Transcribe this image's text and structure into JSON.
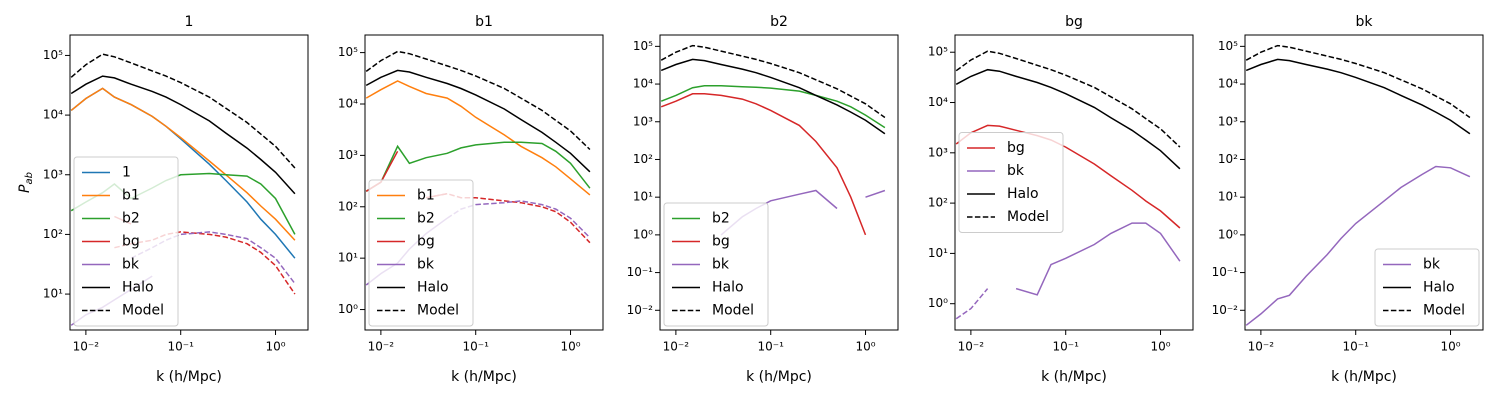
{
  "chart_data": [
    {
      "type": "line",
      "title": "1",
      "xlabel": "k (h/Mpc)",
      "ylabel": {
        "text": "P",
        "sub": "ab"
      },
      "log_x": true,
      "log_y": true,
      "legend_loc": "lower left",
      "x": [
        0.007,
        0.01,
        0.015,
        0.02,
        0.03,
        0.05,
        0.07,
        0.1,
        0.2,
        0.3,
        0.5,
        0.7,
        1.0,
        1.6
      ],
      "xlim": [
        0.0068,
        2.2
      ],
      "xticks": [
        {
          "value": 0.01,
          "label": "10⁻²"
        },
        {
          "value": 0.1,
          "label": "10⁻¹"
        },
        {
          "value": 1,
          "label": "10⁰"
        }
      ],
      "ylim": [
        2.5,
        220000
      ],
      "yticks": [
        {
          "value": 10,
          "label": "10¹"
        },
        {
          "value": 100,
          "label": "10²"
        },
        {
          "value": 1000,
          "label": "10³"
        },
        {
          "value": 10000,
          "label": "10⁴"
        },
        {
          "value": 100000,
          "label": "10⁵"
        }
      ],
      "series": [
        {
          "name": "1",
          "color": "#1f77b4",
          "values": [
            12000,
            19000,
            28000,
            20000,
            15000,
            9500,
            6500,
            4000,
            1500,
            800,
            350,
            180,
            100,
            40
          ]
        },
        {
          "name": "b1",
          "color": "#ff7f0e",
          "values": [
            12000,
            19000,
            28000,
            20000,
            15000,
            9500,
            6500,
            4200,
            1700,
            1000,
            500,
            300,
            180,
            80
          ]
        },
        {
          "name": "b2",
          "color": "#2ca02c",
          "values": [
            250,
            350,
            500,
            700,
            400,
            600,
            800,
            1000,
            1050,
            1000,
            950,
            700,
            400,
            100
          ]
        },
        {
          "name": "bg",
          "color": "#d62728",
          "values": [
            null,
            null,
            null,
            200,
            150,
            null,
            null,
            null,
            null,
            null,
            null,
            null,
            null,
            null
          ]
        },
        {
          "name": "bk",
          "color": "#9467bd",
          "values": [
            3,
            4.5,
            6,
            8,
            12,
            20,
            null,
            null,
            null,
            null,
            null,
            null,
            null,
            null
          ]
        },
        {
          "color": "#d62728",
          "dash": true,
          "values": [
            null,
            null,
            null,
            60,
            70,
            80,
            100,
            110,
            100,
            90,
            70,
            50,
            30,
            10
          ]
        },
        {
          "color": "#9467bd",
          "dash": true,
          "values": [
            null,
            null,
            null,
            null,
            40,
            60,
            80,
            100,
            110,
            100,
            85,
            60,
            40,
            15
          ]
        },
        {
          "name": "Halo",
          "color": "#000000",
          "values": [
            23000,
            33000,
            45000,
            42000,
            33000,
            25000,
            20000,
            15000,
            8000,
            5000,
            2800,
            1800,
            1100,
            480
          ]
        },
        {
          "name": "Model",
          "color": "#000000",
          "dash": true,
          "values": [
            43000,
            70000,
            105000,
            95000,
            75000,
            55000,
            45000,
            35000,
            20000,
            13000,
            7500,
            4800,
            3000,
            1300
          ]
        }
      ]
    },
    {
      "type": "line",
      "title": "b1",
      "xlabel": "k (h/Mpc)",
      "log_x": true,
      "log_y": true,
      "legend_loc": "lower left",
      "x": [
        0.007,
        0.01,
        0.015,
        0.02,
        0.03,
        0.05,
        0.07,
        0.1,
        0.2,
        0.3,
        0.5,
        0.7,
        1.0,
        1.6
      ],
      "xlim": [
        0.0068,
        2.2
      ],
      "xticks": [
        {
          "value": 0.01,
          "label": "10⁻²"
        },
        {
          "value": 0.1,
          "label": "10⁻¹"
        },
        {
          "value": 1,
          "label": "10⁰"
        }
      ],
      "ylim": [
        0.4,
        220000
      ],
      "yticks": [
        {
          "value": 1,
          "label": "10⁰"
        },
        {
          "value": 10,
          "label": "10¹"
        },
        {
          "value": 100,
          "label": "10²"
        },
        {
          "value": 1000,
          "label": "10³"
        },
        {
          "value": 10000,
          "label": "10⁴"
        },
        {
          "value": 100000,
          "label": "10⁵"
        }
      ],
      "series": [
        {
          "name": "b1",
          "color": "#ff7f0e",
          "values": [
            13000,
            19000,
            28000,
            22000,
            16000,
            13000,
            9000,
            5500,
            2500,
            1500,
            900,
            600,
            350,
            170
          ]
        },
        {
          "name": "b2",
          "color": "#2ca02c",
          "values": [
            200,
            300,
            1500,
            700,
            900,
            1100,
            1400,
            1600,
            1800,
            1800,
            1700,
            1200,
            700,
            230
          ]
        },
        {
          "name": "bg",
          "color": "#d62728",
          "values": [
            200,
            300,
            1200,
            null,
            150,
            180,
            null,
            null,
            null,
            null,
            null,
            null,
            null,
            null
          ]
        },
        {
          "name": "bk",
          "color": "#9467bd",
          "values": [
            3,
            5,
            8,
            15,
            30,
            60,
            null,
            null,
            null,
            null,
            null,
            null,
            null,
            null
          ]
        },
        {
          "color": "#d62728",
          "dash": true,
          "values": [
            null,
            null,
            null,
            null,
            150,
            180,
            150,
            150,
            130,
            120,
            100,
            80,
            50,
            20
          ]
        },
        {
          "color": "#9467bd",
          "dash": true,
          "values": [
            null,
            null,
            null,
            null,
            null,
            60,
            90,
            110,
            120,
            130,
            110,
            90,
            60,
            25
          ]
        },
        {
          "name": "Halo",
          "color": "#000000",
          "values": [
            23000,
            33000,
            45000,
            42000,
            33000,
            25000,
            20000,
            15000,
            8000,
            5000,
            2800,
            1800,
            1100,
            480
          ]
        },
        {
          "name": "Model",
          "color": "#000000",
          "dash": true,
          "values": [
            43000,
            70000,
            105000,
            95000,
            75000,
            55000,
            45000,
            35000,
            20000,
            13000,
            7500,
            4800,
            3000,
            1300
          ]
        }
      ]
    },
    {
      "type": "line",
      "title": "b2",
      "xlabel": "k (h/Mpc)",
      "log_x": true,
      "log_y": true,
      "legend_loc": "lower left",
      "x": [
        0.007,
        0.01,
        0.015,
        0.02,
        0.03,
        0.05,
        0.07,
        0.1,
        0.2,
        0.3,
        0.5,
        0.7,
        1.0,
        1.6
      ],
      "xlim": [
        0.0068,
        2.2
      ],
      "xticks": [
        {
          "value": 0.01,
          "label": "10⁻²"
        },
        {
          "value": 0.1,
          "label": "10⁻¹"
        },
        {
          "value": 1,
          "label": "10⁰"
        }
      ],
      "ylim": [
        0.003,
        200000
      ],
      "yticks": [
        {
          "value": 0.01,
          "label": "10⁻²"
        },
        {
          "value": 0.1,
          "label": "10⁻¹"
        },
        {
          "value": 1,
          "label": "10⁰"
        },
        {
          "value": 10,
          "label": "10¹"
        },
        {
          "value": 100,
          "label": "10²"
        },
        {
          "value": 1000,
          "label": "10³"
        },
        {
          "value": 10000,
          "label": "10⁴"
        },
        {
          "value": 100000,
          "label": "10⁵"
        }
      ],
      "series": [
        {
          "name": "b2",
          "color": "#2ca02c",
          "values": [
            3500,
            5000,
            8000,
            9000,
            9000,
            8500,
            8200,
            7800,
            6500,
            5000,
            3500,
            2500,
            1500,
            700
          ]
        },
        {
          "name": "bg",
          "color": "#d62728",
          "values": [
            2500,
            3500,
            5500,
            5500,
            5000,
            4000,
            3000,
            2000,
            800,
            300,
            60,
            10,
            1,
            null
          ]
        },
        {
          "name": "bk",
          "color": "#9467bd",
          "values": [
            null,
            null,
            null,
            null,
            1,
            3,
            5,
            8,
            12,
            15,
            5,
            null,
            10,
            15
          ]
        },
        {
          "name": "Halo",
          "color": "#000000",
          "values": [
            23000,
            33000,
            45000,
            42000,
            33000,
            25000,
            20000,
            15000,
            8000,
            5000,
            2800,
            1800,
            1100,
            480
          ]
        },
        {
          "name": "Model",
          "color": "#000000",
          "dash": true,
          "values": [
            43000,
            70000,
            105000,
            95000,
            75000,
            55000,
            45000,
            35000,
            20000,
            13000,
            7500,
            4800,
            3000,
            1300
          ]
        }
      ]
    },
    {
      "type": "line",
      "title": "bg",
      "xlabel": "k (h/Mpc)",
      "log_x": true,
      "log_y": true,
      "legend_loc": "center left",
      "x": [
        0.007,
        0.01,
        0.015,
        0.02,
        0.03,
        0.05,
        0.07,
        0.1,
        0.2,
        0.3,
        0.5,
        0.7,
        1.0,
        1.6
      ],
      "xlim": [
        0.0068,
        2.2
      ],
      "xticks": [
        {
          "value": 0.01,
          "label": "10⁻²"
        },
        {
          "value": 0.1,
          "label": "10⁻¹"
        },
        {
          "value": 1,
          "label": "10⁰"
        }
      ],
      "ylim": [
        0.3,
        220000
      ],
      "yticks": [
        {
          "value": 1,
          "label": "10⁰"
        },
        {
          "value": 10,
          "label": "10¹"
        },
        {
          "value": 100,
          "label": "10²"
        },
        {
          "value": 1000,
          "label": "10³"
        },
        {
          "value": 10000,
          "label": "10⁴"
        },
        {
          "value": 100000,
          "label": "10⁵"
        }
      ],
      "series": [
        {
          "name": "bg",
          "color": "#d62728",
          "values": [
            1500,
            2500,
            3500,
            3400,
            2800,
            2200,
            1800,
            1300,
            600,
            350,
            180,
            110,
            70,
            32
          ]
        },
        {
          "name": "bk",
          "color": "#9467bd",
          "values": [
            null,
            null,
            null,
            null,
            2,
            1.5,
            6,
            8,
            15,
            25,
            40,
            40,
            25,
            7
          ]
        },
        {
          "color": "#9467bd",
          "dash": true,
          "values": [
            0.5,
            0.8,
            2,
            null,
            null,
            null,
            null,
            null,
            null,
            null,
            null,
            null,
            null,
            null
          ]
        },
        {
          "name": "Halo",
          "color": "#000000",
          "values": [
            23000,
            33000,
            45000,
            42000,
            33000,
            25000,
            20000,
            15000,
            8000,
            5000,
            2800,
            1800,
            1100,
            480
          ]
        },
        {
          "name": "Model",
          "color": "#000000",
          "dash": true,
          "values": [
            43000,
            70000,
            105000,
            95000,
            75000,
            55000,
            45000,
            35000,
            20000,
            13000,
            7500,
            4800,
            3000,
            1300
          ]
        }
      ]
    },
    {
      "type": "line",
      "title": "bk",
      "xlabel": "k (h/Mpc)",
      "log_x": true,
      "log_y": true,
      "legend_loc": "lower right",
      "x": [
        0.007,
        0.01,
        0.015,
        0.02,
        0.03,
        0.05,
        0.07,
        0.1,
        0.2,
        0.3,
        0.5,
        0.7,
        1.0,
        1.6
      ],
      "xlim": [
        0.0068,
        2.2
      ],
      "xticks": [
        {
          "value": 0.01,
          "label": "10⁻²"
        },
        {
          "value": 0.1,
          "label": "10⁻¹"
        },
        {
          "value": 1,
          "label": "10⁰"
        }
      ],
      "ylim": [
        0.003,
        200000
      ],
      "yticks": [
        {
          "value": 0.01,
          "label": "10⁻²"
        },
        {
          "value": 0.1,
          "label": "10⁻¹"
        },
        {
          "value": 1,
          "label": "10⁰"
        },
        {
          "value": 10,
          "label": "10¹"
        },
        {
          "value": 100,
          "label": "10²"
        },
        {
          "value": 1000,
          "label": "10³"
        },
        {
          "value": 10000,
          "label": "10⁴"
        },
        {
          "value": 100000,
          "label": "10⁵"
        }
      ],
      "series": [
        {
          "name": "bk",
          "color": "#9467bd",
          "values": [
            0.004,
            0.008,
            0.02,
            0.025,
            0.08,
            0.3,
            0.8,
            2,
            8,
            18,
            40,
            65,
            60,
            35
          ]
        },
        {
          "name": "Halo",
          "color": "#000000",
          "values": [
            23000,
            33000,
            45000,
            42000,
            33000,
            25000,
            20000,
            15000,
            8000,
            5000,
            2800,
            1800,
            1100,
            480
          ]
        },
        {
          "name": "Model",
          "color": "#000000",
          "dash": true,
          "values": [
            43000,
            70000,
            105000,
            95000,
            75000,
            55000,
            45000,
            35000,
            20000,
            13000,
            7500,
            4800,
            3000,
            1300
          ]
        }
      ]
    }
  ]
}
